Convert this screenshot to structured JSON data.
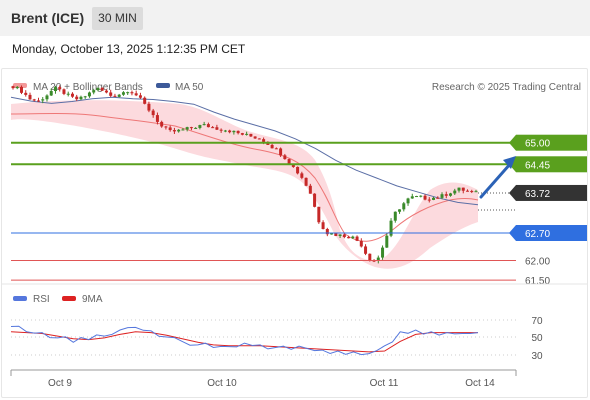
{
  "header": {
    "instrument": "Brent (ICE)",
    "timeframe": "30 MIN"
  },
  "datetime": "Monday, October 13, 2025 1:12:35 PM CET",
  "legend": {
    "ma20_bb": "MA 20 + Bollinger Bands",
    "ma50": "MA 50",
    "credit": "Research © 2025 Trading Central",
    "rsi": "RSI",
    "ma9": "9MA"
  },
  "colors": {
    "ma20": "#ee7777",
    "bands": "#fbd3d8",
    "ma50": "#5b6fa6",
    "support_green": "#5aa01e",
    "pivot_blue": "#2f6fe0",
    "resistance_red": "#e05555",
    "last_price": "#333333",
    "rsi": "#5577dd",
    "rsi_ma": "#dd2222",
    "candle_up": "#3a8a2a",
    "candle_down": "#c62828"
  },
  "levels": [
    {
      "value": 65.0,
      "label": "65.00",
      "kind": "green"
    },
    {
      "value": 64.45,
      "label": "64.45",
      "kind": "green"
    },
    {
      "value": 63.72,
      "label": "63.72",
      "kind": "last"
    },
    {
      "value": 62.7,
      "label": "62.70",
      "kind": "blue"
    },
    {
      "value": 62.0,
      "label": "62.00",
      "kind": "red"
    },
    {
      "value": 61.5,
      "label": "61.50",
      "kind": "red"
    }
  ],
  "xaxis": {
    "labels": [
      "Oct 9",
      "Oct 10",
      "Oct 11",
      "Oct 14"
    ]
  },
  "rsi_axis": {
    "ticks": [
      70,
      50,
      30
    ]
  },
  "chart_data": {
    "type": "candlestick",
    "x_labels": [
      "Oct 9",
      "Oct 10",
      "Oct 11",
      "Oct 14"
    ],
    "price_levels": [
      65.0,
      64.45,
      63.72,
      62.7,
      62.0,
      61.5
    ],
    "close_path": [
      66.44,
      66.32,
      66.12,
      66.05,
      66.2,
      66.38,
      66.3,
      66.15,
      66.1,
      66.22,
      66.4,
      66.3,
      66.18,
      66.25,
      66.35,
      66.2,
      65.95,
      65.7,
      65.4,
      65.28,
      65.3,
      65.35,
      65.4,
      65.45,
      65.4,
      65.35,
      65.32,
      65.25,
      65.2,
      65.15,
      65.1,
      64.95,
      64.8,
      64.6,
      64.35,
      64.1,
      63.7,
      63.0,
      62.7,
      62.66,
      62.63,
      62.6,
      62.45,
      62.05,
      61.98,
      62.5,
      63.15,
      63.4,
      63.6,
      63.62,
      63.58,
      63.6,
      63.65,
      63.75,
      63.82,
      63.76,
      63.72
    ],
    "ma50_path": [
      66.16,
      66.06,
      66.0,
      66.05,
      66.12,
      66.16,
      66.12,
      66.1,
      66.05,
      65.98,
      65.78,
      65.6,
      65.45,
      65.3,
      65.1,
      64.85,
      64.55,
      64.3,
      64.1,
      63.9,
      63.75,
      63.6,
      63.48,
      63.42
    ],
    "rsi": {
      "overbought": 70,
      "mid": 50,
      "oversold": 30,
      "rsi_values": [
        62,
        56,
        55,
        49,
        44,
        47,
        51,
        58,
        61,
        57,
        50,
        45,
        41,
        38,
        39,
        43,
        41,
        38,
        36,
        37,
        35,
        34,
        33,
        31,
        40,
        56,
        58,
        56,
        55,
        54,
        55
      ],
      "ma9_values": [
        56,
        55,
        54,
        51,
        48,
        47,
        49,
        53,
        56,
        55,
        52,
        48,
        44,
        41,
        40,
        40,
        40,
        39,
        38,
        37,
        36,
        35,
        34,
        33,
        34,
        45,
        53,
        55,
        55,
        55,
        55
      ]
    }
  }
}
